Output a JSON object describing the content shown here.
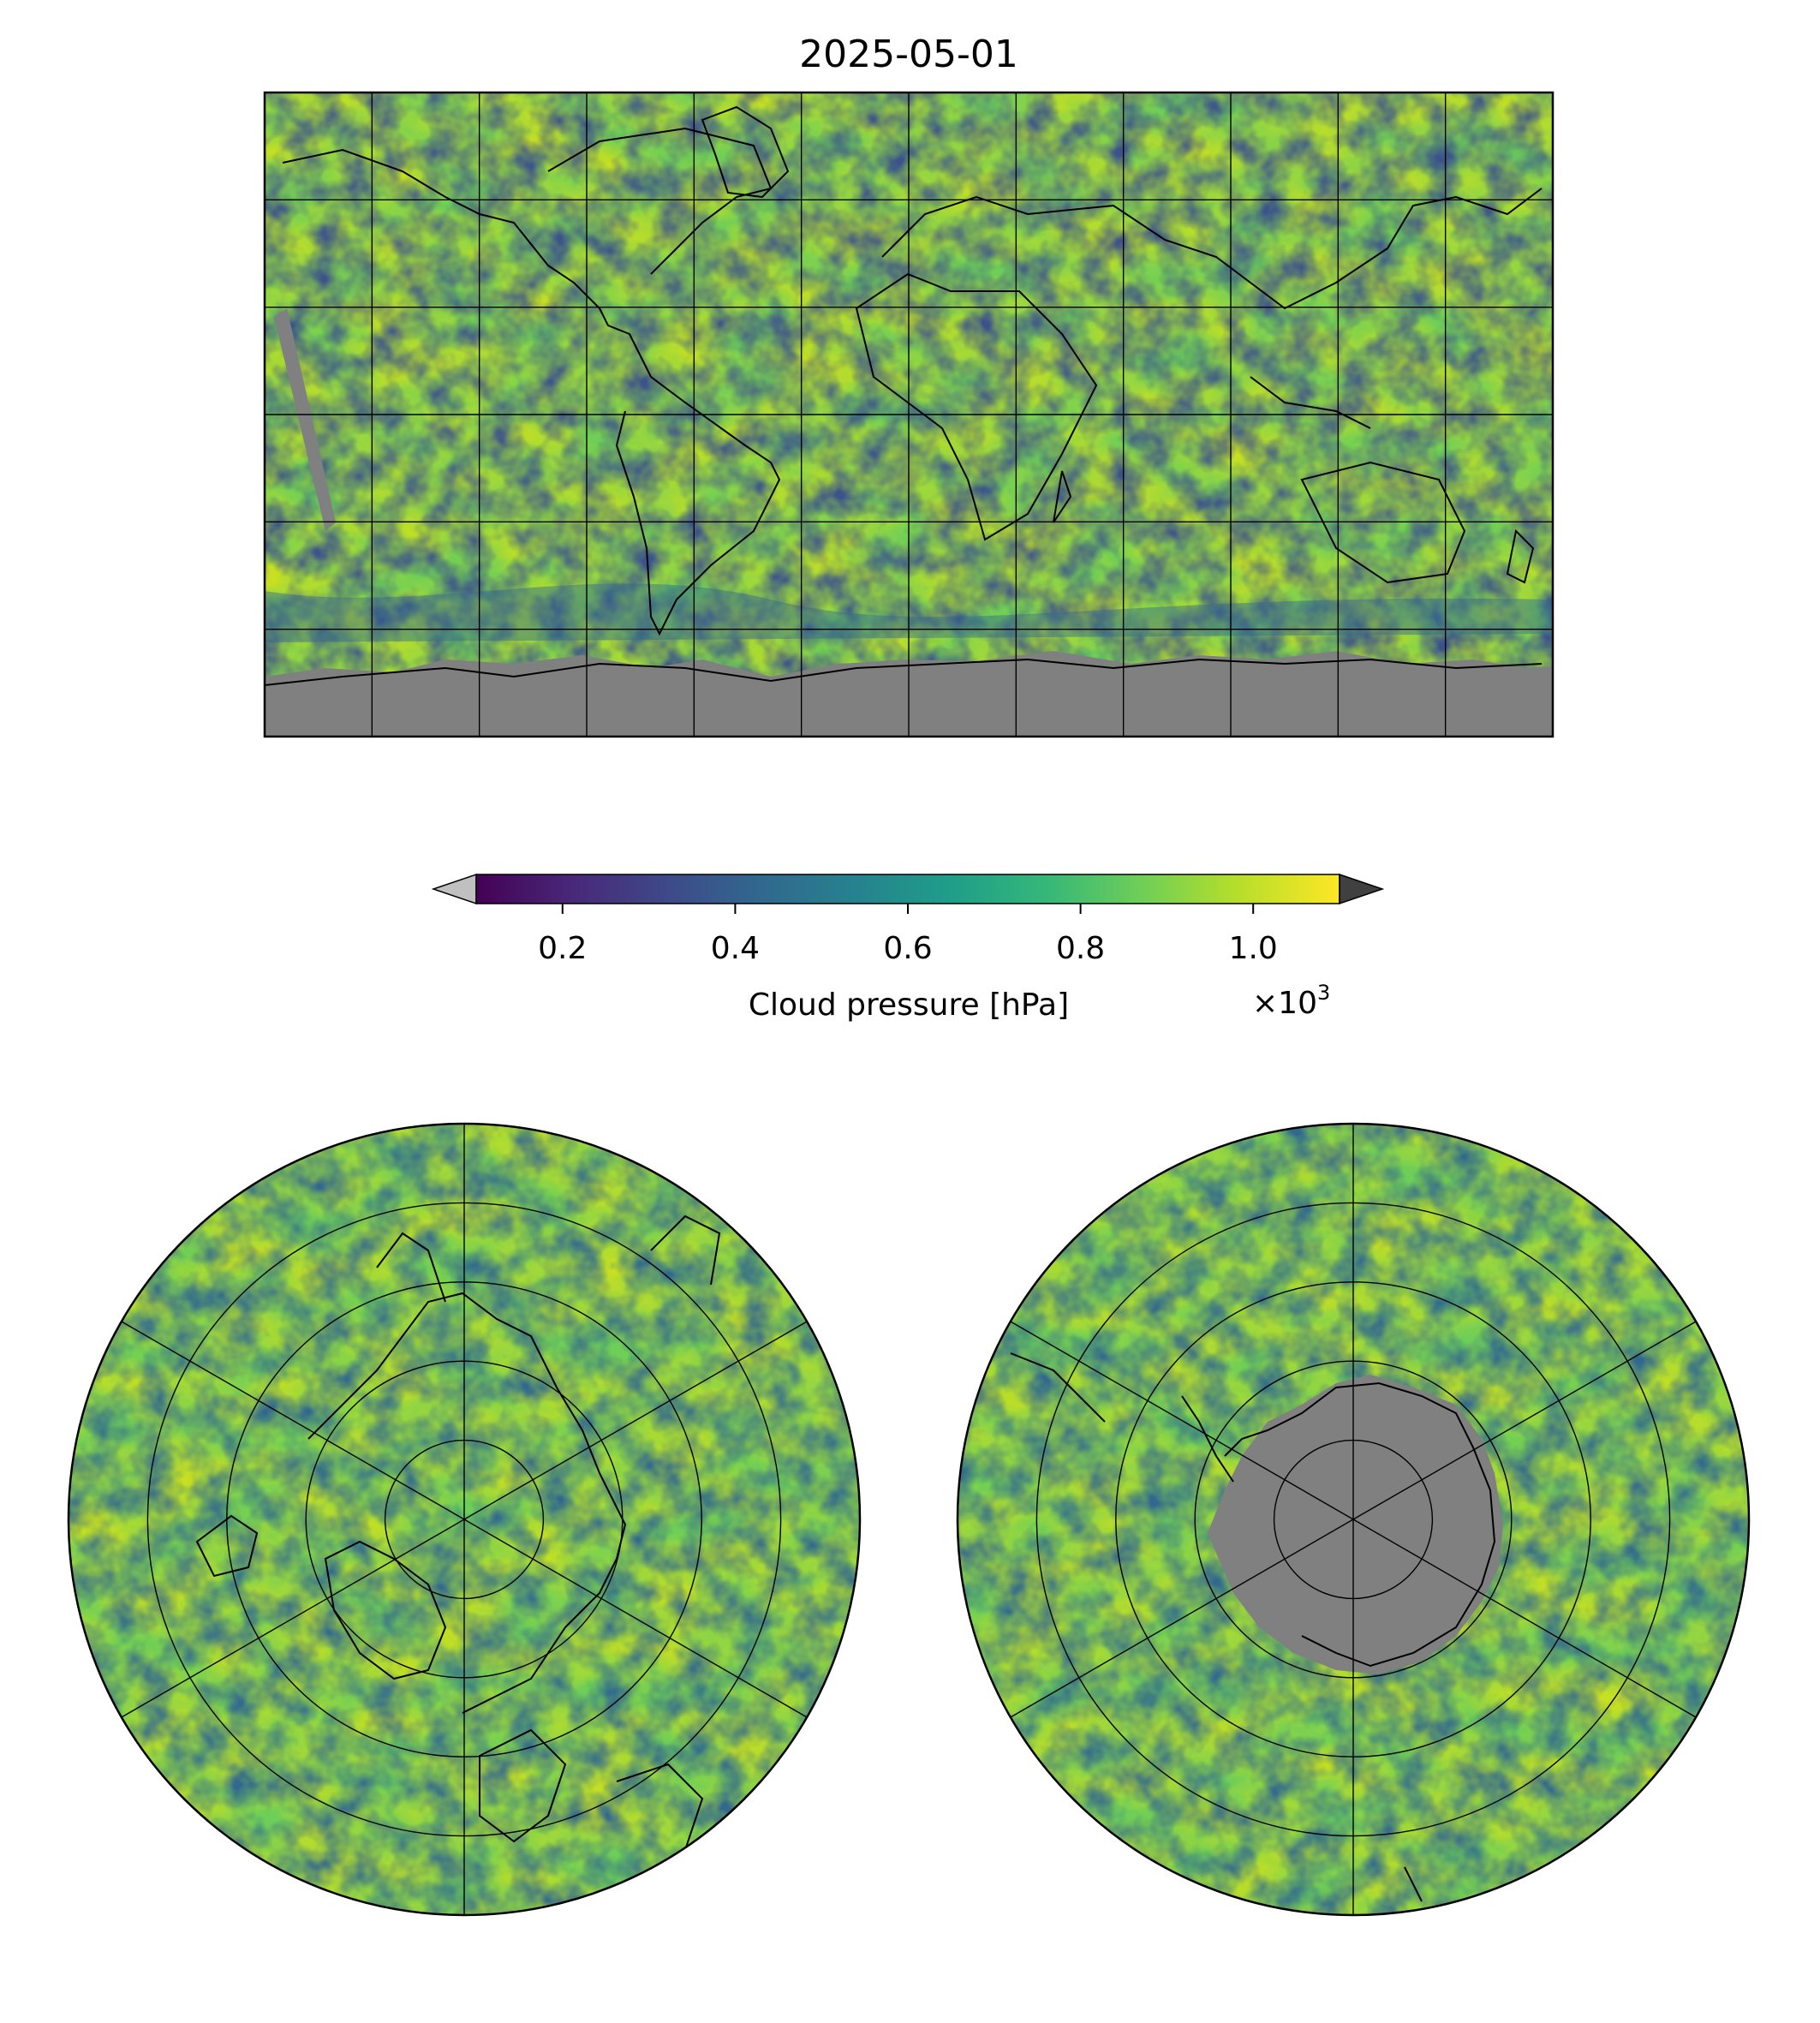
{
  "figure": {
    "title": "2025-05-01"
  },
  "colors": {
    "land_mask": "#808080",
    "coastline": "#000000",
    "under": "#c0c0c0",
    "over": "#404040",
    "viridis": [
      "#440154",
      "#482878",
      "#3e4989",
      "#31688e",
      "#26828e",
      "#1f9e89",
      "#35b779",
      "#6ece58",
      "#b5de2b",
      "#fde725"
    ]
  },
  "colorbar": {
    "label": "Cloud pressure [hPa]",
    "ticks": [
      "0.2",
      "0.4",
      "0.6",
      "0.8",
      "1.0"
    ],
    "tick_values": [
      0.2,
      0.4,
      0.6,
      0.8,
      1.0
    ],
    "range": [
      0.1,
      1.1
    ],
    "offset_base": "×10",
    "offset_exp": "3",
    "extend": "both"
  },
  "panels": [
    {
      "name": "global-map",
      "projection": "plate-carree",
      "gridlines": {
        "lon_step": 30,
        "lat_step": 30
      }
    },
    {
      "name": "north-polar-map",
      "projection": "north-polar-stereographic",
      "gridlines": {
        "rings": 4,
        "meridians": 6
      }
    },
    {
      "name": "south-polar-map",
      "projection": "south-polar-stereographic",
      "gridlines": {
        "rings": 4,
        "meridians": 6
      }
    }
  ]
}
